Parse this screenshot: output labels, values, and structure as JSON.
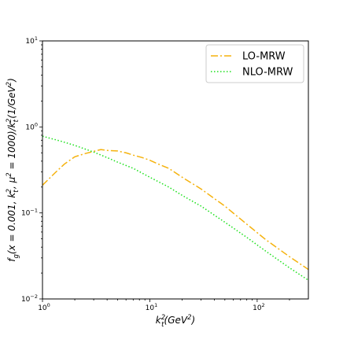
{
  "chart_data": {
    "type": "line",
    "xscale": "log",
    "yscale": "log",
    "xlim": [
      1,
      300
    ],
    "ylim": [
      0.01,
      10
    ],
    "xlabel_parts": {
      "base": "k",
      "sub": "t",
      "sup": "2",
      "rest_open": "(GeV",
      "rest_sup": "2",
      "rest_close": ")"
    },
    "ylabel_text": "f_g(x = 0.001, k_t^2, μ^2 = 1000)/k_t^2 (1/GeV^2)",
    "ylabel_parts": {
      "p1": "f",
      "p1sub": "g",
      "p2": "(x = 0.001, k",
      "p2sub": "t",
      "p2sup": "2",
      "p3": ", μ",
      "p3sup": "2",
      "p4": " = 1000)/k",
      "p4sub": "t",
      "p4sup": "2",
      "p5": "(1/GeV",
      "p5sup": "2",
      "p6": ")"
    },
    "xticks": [
      {
        "value": 1,
        "base": "10",
        "exp": "0"
      },
      {
        "value": 10,
        "base": "10",
        "exp": "1"
      },
      {
        "value": 100,
        "base": "10",
        "exp": "2"
      }
    ],
    "yticks": [
      {
        "value": 0.01,
        "base": "10",
        "exp": "−2"
      },
      {
        "value": 0.1,
        "base": "10",
        "exp": "−1"
      },
      {
        "value": 1,
        "base": "10",
        "exp": "0"
      },
      {
        "value": 10,
        "base": "10",
        "exp": "1"
      }
    ],
    "legend_position": "top-right",
    "grid": false,
    "series": [
      {
        "name": "LO-MRW",
        "color": "#f5b20d",
        "style": "dash-dot",
        "x": [
          1,
          1.3,
          1.6,
          2,
          2.5,
          3,
          3.5,
          4.2,
          5,
          6,
          7,
          8.5,
          10,
          12,
          15,
          20,
          30,
          50,
          80,
          120,
          200,
          300
        ],
        "y": [
          0.21,
          0.29,
          0.37,
          0.45,
          0.49,
          0.52,
          0.545,
          0.53,
          0.525,
          0.5,
          0.47,
          0.44,
          0.41,
          0.37,
          0.33,
          0.26,
          0.19,
          0.12,
          0.074,
          0.049,
          0.031,
          0.022
        ]
      },
      {
        "name": "NLO-MRW",
        "color": "#1be01b",
        "style": "dotted",
        "x": [
          1,
          1.5,
          2,
          3,
          4,
          5,
          7,
          10,
          15,
          20,
          30,
          50,
          80,
          120,
          200,
          300
        ],
        "y": [
          0.78,
          0.68,
          0.61,
          0.51,
          0.44,
          0.39,
          0.33,
          0.26,
          0.2,
          0.16,
          0.12,
          0.078,
          0.052,
          0.036,
          0.023,
          0.0165
        ]
      }
    ]
  }
}
